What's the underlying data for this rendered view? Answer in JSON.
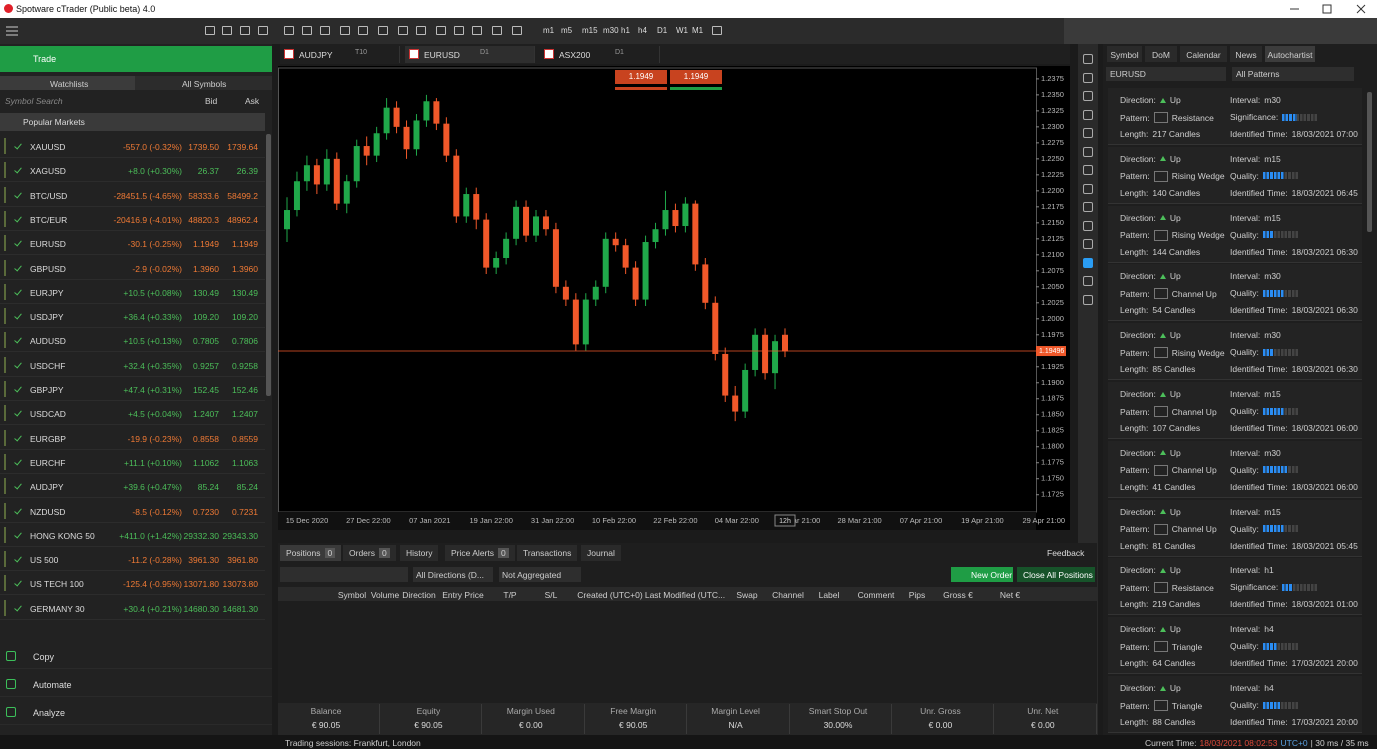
{
  "window": {
    "title": "Spotware cTrader (Public beta) 4.0"
  },
  "toolbar": {
    "timeframes": [
      "m1",
      "m5",
      "m15",
      "m30",
      "h1",
      "h4",
      "D1",
      "W1",
      "M1"
    ]
  },
  "left_panel": {
    "trade": "Trade",
    "tabs": [
      "Watchlists",
      "All Symbols"
    ],
    "search": "Symbol Search",
    "bid": "Bid",
    "ask": "Ask",
    "group": "Popular Markets",
    "rows": [
      [
        "XAUUSD",
        "-557.0 (-0.32%)",
        "1739.50",
        "1739.64"
      ],
      [
        "XAGUSD",
        "+8.0 (+0.30%)",
        "26.37",
        "26.39"
      ],
      [
        "BTC/USD",
        "-28451.5 (-4.65%)",
        "58333.6",
        "58499.2"
      ],
      [
        "BTC/EUR",
        "-20416.9 (-4.01%)",
        "48820.3",
        "48962.4"
      ],
      [
        "EURUSD",
        "-30.1 (-0.25%)",
        "1.1949",
        "1.1949"
      ],
      [
        "GBPUSD",
        "-2.9 (-0.02%)",
        "1.3960",
        "1.3960"
      ],
      [
        "EURJPY",
        "+10.5 (+0.08%)",
        "130.49",
        "130.49"
      ],
      [
        "USDJPY",
        "+36.4 (+0.33%)",
        "109.20",
        "109.20"
      ],
      [
        "AUDUSD",
        "+10.5 (+0.13%)",
        "0.7805",
        "0.7806"
      ],
      [
        "USDCHF",
        "+32.4 (+0.35%)",
        "0.9257",
        "0.9258"
      ],
      [
        "GBPJPY",
        "+47.4 (+0.31%)",
        "152.45",
        "152.46"
      ],
      [
        "USDCAD",
        "+4.5 (+0.04%)",
        "1.2407",
        "1.2407"
      ],
      [
        "EURGBP",
        "-19.9 (-0.23%)",
        "0.8558",
        "0.8559"
      ],
      [
        "EURCHF",
        "+11.1 (+0.10%)",
        "1.1062",
        "1.1063"
      ],
      [
        "AUDJPY",
        "+39.6 (+0.47%)",
        "85.24",
        "85.24"
      ],
      [
        "NZDUSD",
        "-8.5 (-0.12%)",
        "0.7230",
        "0.7231"
      ],
      [
        "HONG KONG 50",
        "+411.0 (+1.42%)",
        "29332.30",
        "29343.30"
      ],
      [
        "US 500",
        "-11.2 (-0.28%)",
        "3961.30",
        "3961.80"
      ],
      [
        "US TECH 100",
        "-125.4 (-0.95%)",
        "13071.80",
        "13073.80"
      ],
      [
        "GERMANY 30",
        "+30.4 (+0.21%)",
        "14680.30",
        "14681.30"
      ]
    ],
    "nav": [
      "Copy",
      "Automate",
      "Analyze"
    ]
  },
  "chart_tabs": [
    {
      "symbol": "AUDJPY",
      "period": "T10"
    },
    {
      "symbol": "EURUSD",
      "period": "D1"
    },
    {
      "symbol": "ASX200",
      "period": "D1"
    }
  ],
  "chart": {
    "sell": "1.1949",
    "buy": "1.1949",
    "ylim": [
      1.1698,
      1.2392
    ],
    "yticks": [
      1.2375,
      {
        "value": 1.235,
        "label": "1.2350"
      },
      1.2325,
      {
        "value": 1.23,
        "label": "1.2300"
      },
      1.2275,
      {
        "value": 1.225,
        "label": "1.2250"
      },
      1.2225,
      {
        "value": 1.22,
        "label": "1.2200"
      },
      1.2175,
      {
        "value": 1.215,
        "label": "1.2150"
      },
      1.2125,
      {
        "value": 1.21,
        "label": "1.2100"
      },
      1.2075,
      {
        "value": 1.205,
        "label": "1.2050"
      },
      1.2025,
      {
        "value": 1.2,
        "label": "1.2000"
      },
      1.1975,
      {
        "value": 1.195,
        "label": "1.1950"
      },
      1.1925,
      {
        "value": 1.19,
        "label": "1.1900"
      },
      1.1875,
      {
        "value": 1.185,
        "label": "1.1850"
      },
      1.1825,
      {
        "value": 1.18,
        "label": "1.1800"
      },
      1.1775,
      {
        "value": 1.175,
        "label": "1.1750"
      },
      1.1725
    ],
    "price_line": 1.19496,
    "x_labels": [
      "15 Dec 2020",
      "27 Dec 22:00",
      "07 Jan 2021",
      "19 Jan 22:00",
      "31 Jan 22:00",
      "10 Feb 22:00",
      "22 Feb 22:00",
      "04 Mar 22:00",
      "16 Mar 21:00",
      "28 Mar 21:00",
      "07 Apr 21:00",
      "19 Apr 21:00",
      "29 Apr 21:00"
    ],
    "time_marker": "12h",
    "candles": [
      [
        1.214,
        1.219,
        1.212,
        1.217
      ],
      [
        1.217,
        1.223,
        1.216,
        1.2215
      ],
      [
        1.2215,
        1.2255,
        1.22,
        1.224
      ],
      [
        1.224,
        1.225,
        1.2195,
        1.221
      ],
      [
        1.221,
        1.2265,
        1.22,
        1.225
      ],
      [
        1.225,
        1.226,
        1.217,
        1.218
      ],
      [
        1.218,
        1.2225,
        1.2165,
        1.2215
      ],
      [
        1.2215,
        1.228,
        1.2205,
        1.227
      ],
      [
        1.227,
        1.2285,
        1.224,
        1.2255
      ],
      [
        1.2255,
        1.23,
        1.2245,
        1.229
      ],
      [
        1.229,
        1.2345,
        1.228,
        1.233
      ],
      [
        1.233,
        1.234,
        1.229,
        1.23
      ],
      [
        1.23,
        1.231,
        1.225,
        1.2265
      ],
      [
        1.2265,
        1.232,
        1.2255,
        1.231
      ],
      [
        1.231,
        1.235,
        1.23,
        1.234
      ],
      [
        1.234,
        1.2345,
        1.2295,
        1.2305
      ],
      [
        1.2305,
        1.2315,
        1.2245,
        1.2255
      ],
      [
        1.2255,
        1.2265,
        1.215,
        1.216
      ],
      [
        1.216,
        1.2205,
        1.215,
        1.2195
      ],
      [
        1.2195,
        1.2205,
        1.214,
        1.2155
      ],
      [
        1.2155,
        1.2165,
        1.207,
        1.208
      ],
      [
        1.208,
        1.2105,
        1.207,
        1.2095
      ],
      [
        1.2095,
        1.2135,
        1.2085,
        1.2125
      ],
      [
        1.2125,
        1.2185,
        1.2115,
        1.2175
      ],
      [
        1.2175,
        1.2185,
        1.212,
        1.213
      ],
      [
        1.213,
        1.217,
        1.212,
        1.216
      ],
      [
        1.216,
        1.217,
        1.213,
        1.214
      ],
      [
        1.214,
        1.215,
        1.204,
        1.205
      ],
      [
        1.205,
        1.206,
        1.202,
        1.203
      ],
      [
        1.203,
        1.204,
        1.195,
        1.196
      ],
      [
        1.196,
        1.204,
        1.195,
        1.203
      ],
      [
        1.203,
        1.206,
        1.202,
        1.205
      ],
      [
        1.205,
        1.2135,
        1.204,
        1.2125
      ],
      [
        1.2125,
        1.2135,
        1.2105,
        1.2115
      ],
      [
        1.2115,
        1.2125,
        1.207,
        1.208
      ],
      [
        1.208,
        1.209,
        1.202,
        1.203
      ],
      [
        1.203,
        1.213,
        1.202,
        1.212
      ],
      [
        1.212,
        1.215,
        1.211,
        1.214
      ],
      [
        1.214,
        1.22,
        1.213,
        1.217
      ],
      [
        1.217,
        1.218,
        1.2135,
        1.2145
      ],
      [
        1.2145,
        1.219,
        1.2135,
        1.218
      ],
      [
        1.218,
        1.2185,
        1.2075,
        1.2085
      ],
      [
        1.2085,
        1.2095,
        1.2015,
        1.2025
      ],
      [
        1.2025,
        1.2035,
        1.1935,
        1.1945
      ],
      [
        1.1945,
        1.1955,
        1.187,
        1.188
      ],
      [
        1.188,
        1.1895,
        1.184,
        1.1855
      ],
      [
        1.1855,
        1.193,
        1.1845,
        1.192
      ],
      [
        1.192,
        1.1985,
        1.191,
        1.1975
      ],
      [
        1.1975,
        1.1985,
        1.1905,
        1.1915
      ],
      [
        1.1915,
        1.1975,
        1.189,
        1.1965
      ],
      [
        1.1975,
        1.1985,
        1.194,
        1.1949
      ]
    ]
  },
  "right_panel": {
    "tabs": [
      "Symbol",
      "DoM",
      "Calendar",
      "News",
      "Autochartist"
    ],
    "symbol": "EURUSD",
    "filter": "All Patterns",
    "labels": {
      "direction": "Direction:",
      "interval": "Interval:",
      "pattern": "Pattern:",
      "length": "Length:",
      "identified": "Identified Time:"
    },
    "up": "Up",
    "cards": [
      {
        "interval": "m30",
        "pattern": "Resistance",
        "measure": "Significance:",
        "length": "217 Candles",
        "time": "18/03/2021 07:00",
        "quality": 4
      },
      {
        "interval": "m15",
        "pattern": "Rising Wedge",
        "measure": "Quality:",
        "length": "140 Candles",
        "time": "18/03/2021 06:45",
        "quality": 6
      },
      {
        "interval": "m15",
        "pattern": "Rising Wedge",
        "measure": "Quality:",
        "length": "144 Candles",
        "time": "18/03/2021 06:30",
        "quality": 3
      },
      {
        "interval": "m30",
        "pattern": "Channel Up",
        "measure": "Quality:",
        "length": "54 Candles",
        "time": "18/03/2021 06:30",
        "quality": 6
      },
      {
        "interval": "m30",
        "pattern": "Rising Wedge",
        "measure": "Quality:",
        "length": "85 Candles",
        "time": "18/03/2021 06:30",
        "quality": 3
      },
      {
        "interval": "m15",
        "pattern": "Channel Up",
        "measure": "Quality:",
        "length": "107 Candles",
        "time": "18/03/2021 06:00",
        "quality": 6
      },
      {
        "interval": "m30",
        "pattern": "Channel Up",
        "measure": "Quality:",
        "length": "41 Candles",
        "time": "18/03/2021 06:00",
        "quality": 7
      },
      {
        "interval": "m15",
        "pattern": "Channel Up",
        "measure": "Quality:",
        "length": "81 Candles",
        "time": "18/03/2021 05:45",
        "quality": 6
      },
      {
        "interval": "h1",
        "pattern": "Resistance",
        "measure": "Significance:",
        "length": "219 Candles",
        "time": "18/03/2021 01:00",
        "quality": 3
      },
      {
        "interval": "h4",
        "pattern": "Triangle",
        "measure": "Quality:",
        "length": "64 Candles",
        "time": "17/03/2021 20:00",
        "quality": 4
      },
      {
        "interval": "h4",
        "pattern": "Triangle",
        "measure": "Quality:",
        "length": "88 Candles",
        "time": "17/03/2021 20:00",
        "quality": 5
      }
    ]
  },
  "bottom_panel": {
    "tabs": [
      {
        "label": "Positions",
        "count": 0
      },
      {
        "label": "Orders",
        "count": 0
      },
      {
        "label": "History"
      },
      {
        "label": "Price Alerts",
        "count": 0
      },
      {
        "label": "Transactions"
      },
      {
        "label": "Journal"
      }
    ],
    "feedback": "Feedback",
    "direction_filter": "All Directions (D...",
    "aggregation": "Not Aggregated",
    "new_order": "New Order",
    "close_all": "Close All Positions",
    "columns": [
      "Symbol",
      "Volume",
      "Direction",
      "Entry Price",
      "T/P",
      "S/L",
      "Created (UTC+0)",
      "Last Modified (UTC...",
      "Swap",
      "Channel",
      "Label",
      "Comment",
      "Pips",
      "Gross €",
      "Net €"
    ],
    "summary": [
      {
        "label": "Balance",
        "value": "€ 90.05"
      },
      {
        "label": "Equity",
        "value": "€ 90.05"
      },
      {
        "label": "Margin Used",
        "value": "€ 0.00"
      },
      {
        "label": "Free Margin",
        "value": "€ 90.05"
      },
      {
        "label": "Margin Level",
        "value": "N/A"
      },
      {
        "label": "Smart Stop Out",
        "value": "30.00%"
      },
      {
        "label": "Unr. Gross",
        "value": "€ 0.00"
      },
      {
        "label": "Unr. Net",
        "value": "€ 0.00"
      }
    ]
  },
  "status": {
    "sessions": "Trading sessions: Frankfurt, London",
    "current_time_label": "Current Time:",
    "time": "18/03/2021 08:02:53",
    "timezone": "UTC+0",
    "latency": "| 30 ms / 35 ms"
  }
}
